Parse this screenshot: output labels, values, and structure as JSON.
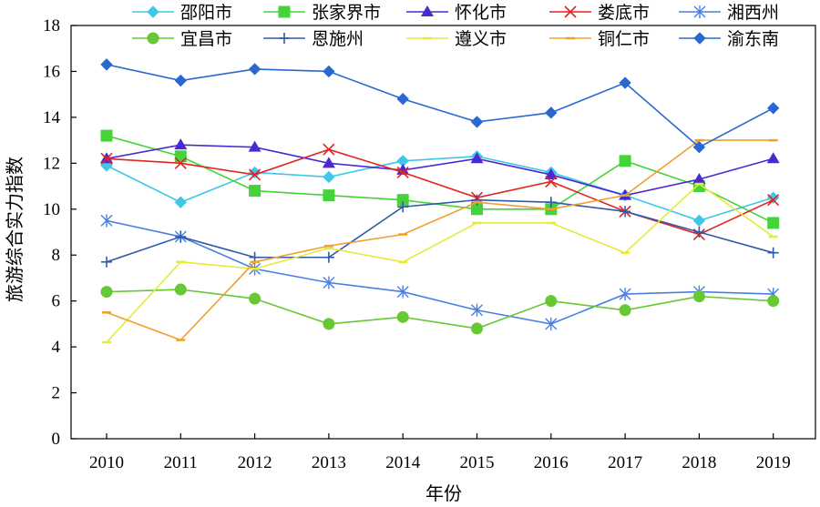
{
  "chart_data": {
    "type": "line",
    "title": "",
    "xlabel": "年份",
    "ylabel": "旅游综合实力指数",
    "ylim": [
      0,
      18
    ],
    "yticks": [
      0,
      2,
      4,
      6,
      8,
      10,
      12,
      14,
      16,
      18
    ],
    "grid": false,
    "legend_position": "top",
    "categories": [
      "2010",
      "2011",
      "2012",
      "2013",
      "2014",
      "2015",
      "2016",
      "2017",
      "2018",
      "2019"
    ],
    "series": [
      {
        "name": "邵阳市",
        "color": "#3fc7e8",
        "marker": "diamond",
        "values": [
          11.9,
          10.3,
          11.6,
          11.4,
          12.1,
          12.3,
          11.6,
          10.6,
          9.5,
          10.5
        ]
      },
      {
        "name": "张家界市",
        "color": "#44d43a",
        "marker": "square",
        "values": [
          13.2,
          12.3,
          10.8,
          10.6,
          10.4,
          10.0,
          10.0,
          12.1,
          11.0,
          9.4
        ]
      },
      {
        "name": "怀化市",
        "color": "#4a2ad0",
        "marker": "triangle",
        "values": [
          12.2,
          12.8,
          12.7,
          12.0,
          11.7,
          12.2,
          11.5,
          10.6,
          11.3,
          12.2
        ]
      },
      {
        "name": "娄底市",
        "color": "#e02424",
        "marker": "x",
        "values": [
          12.2,
          12.0,
          11.5,
          12.6,
          11.6,
          10.5,
          11.2,
          9.9,
          8.9,
          10.4
        ]
      },
      {
        "name": "湘西州",
        "color": "#4a7fe0",
        "marker": "star",
        "values": [
          9.5,
          8.8,
          7.4,
          6.8,
          6.4,
          5.6,
          5.0,
          6.3,
          6.4,
          6.3
        ]
      },
      {
        "name": "宜昌市",
        "color": "#66c832",
        "marker": "circle",
        "values": [
          6.4,
          6.5,
          6.1,
          5.0,
          5.3,
          4.8,
          6.0,
          5.6,
          6.2,
          6.0
        ]
      },
      {
        "name": "恩施州",
        "color": "#2f5aa8",
        "marker": "plus",
        "values": [
          7.7,
          8.8,
          7.9,
          7.9,
          10.1,
          10.4,
          10.3,
          9.9,
          9.0,
          8.1
        ]
      },
      {
        "name": "遵义市",
        "color": "#e6ea3a",
        "marker": "dash",
        "values": [
          4.2,
          7.7,
          7.4,
          8.3,
          7.7,
          9.4,
          9.4,
          8.1,
          11.1,
          8.8
        ]
      },
      {
        "name": "铜仁市",
        "color": "#f0a030",
        "marker": "dash",
        "values": [
          5.5,
          4.3,
          7.7,
          8.4,
          8.9,
          10.3,
          10.0,
          10.6,
          13.0,
          13.0
        ]
      },
      {
        "name": "渝东南",
        "color": "#2a68d0",
        "marker": "diamond",
        "values": [
          16.3,
          15.6,
          16.1,
          16.0,
          14.8,
          13.8,
          14.2,
          15.5,
          12.7,
          14.4
        ]
      }
    ]
  }
}
